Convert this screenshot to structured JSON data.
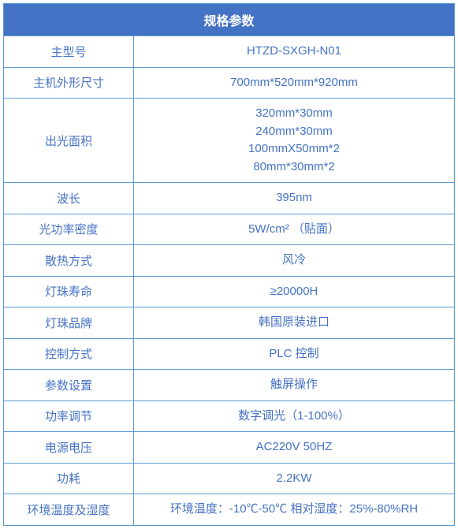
{
  "table": {
    "title": "规格参数",
    "header_bg_color": "#4472c4",
    "header_text_color": "#ffffff",
    "header_fontsize": 16,
    "border_color": "#5b9bd5",
    "cell_text_color": "#4472c4",
    "cell_fontsize": 15,
    "rows": [
      {
        "label": "主型号",
        "values": [
          "HTZD-SXGH-N01"
        ]
      },
      {
        "label": "主机外形尺寸",
        "values": [
          "700mm*520mm*920mm"
        ]
      },
      {
        "label": "出光面积",
        "values": [
          "320mm*30mm",
          "240mm*30mm",
          "100mmX50mm*2",
          "80mm*30mm*2"
        ]
      },
      {
        "label": "波长",
        "values": [
          "395nm"
        ]
      },
      {
        "label": "光功率密度",
        "values": [
          "5W/cm² （贴面）"
        ]
      },
      {
        "label": "散热方式",
        "values": [
          "风冷"
        ]
      },
      {
        "label": "灯珠寿命",
        "values": [
          "≥20000H"
        ]
      },
      {
        "label": "灯珠品牌",
        "values": [
          "韩国原装进口"
        ]
      },
      {
        "label": "控制方式",
        "values": [
          "PLC 控制"
        ]
      },
      {
        "label": "参数设置",
        "values": [
          "触屏操作"
        ]
      },
      {
        "label": "功率调节",
        "values": [
          "数字调光（1-100%）"
        ]
      },
      {
        "label": "电源电压",
        "values": [
          "AC220V 50HZ"
        ]
      },
      {
        "label": "功耗",
        "values": [
          "2.2KW"
        ]
      },
      {
        "label": "环境温度及湿度",
        "values": [
          "环境温度：-10℃-50℃ 相对湿度：25%-80%RH"
        ]
      }
    ]
  }
}
